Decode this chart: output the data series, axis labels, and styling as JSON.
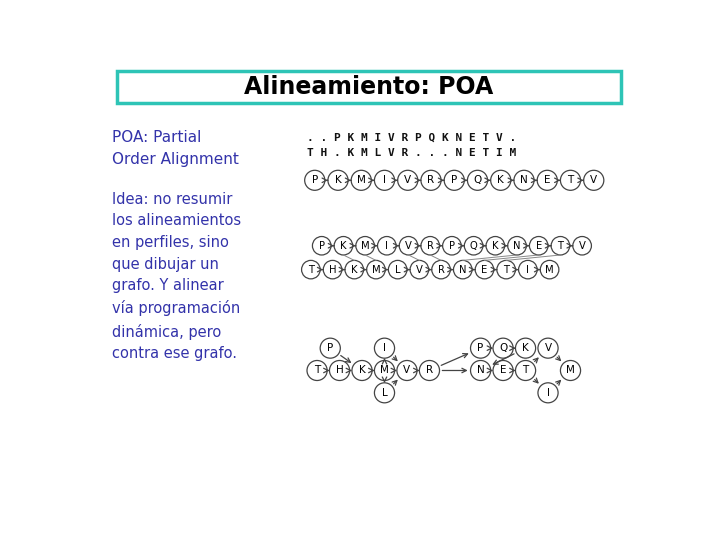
{
  "title": "Alineamiento: POA",
  "title_color": "#000000",
  "title_border_color": "#2ec4b6",
  "bg_color": "#ffffff",
  "left_text_color": "#3333aa",
  "left_text1": "POA: Partial\nOrder Alignment",
  "left_text2": "Idea: no resumir\nlos alineamientos\nen perfiles, sino\nque dibujar un\ngrafo. Y alinear\nvía programación\ndinámica, pero\ncontra ese grafo.",
  "seq1": ". . P K M I V R P Q K N E T V .",
  "seq2": "T H . K M L V R . . . N E T I M",
  "graph1_nodes": [
    "P",
    "K",
    "M",
    "I",
    "V",
    "R",
    "P",
    "Q",
    "K",
    "N",
    "E",
    "T",
    "V"
  ],
  "graph2_top": [
    "P",
    "K",
    "M",
    "I",
    "V",
    "R",
    "P",
    "Q",
    "K",
    "N",
    "E",
    "T",
    "V"
  ],
  "graph2_bot": [
    "T",
    "H",
    "K",
    "M",
    "L",
    "V",
    "R",
    "N",
    "E",
    "T",
    "I",
    "M"
  ],
  "node_ec": "#444444",
  "node_fc": "#ffffff",
  "arrow_color": "#444444"
}
